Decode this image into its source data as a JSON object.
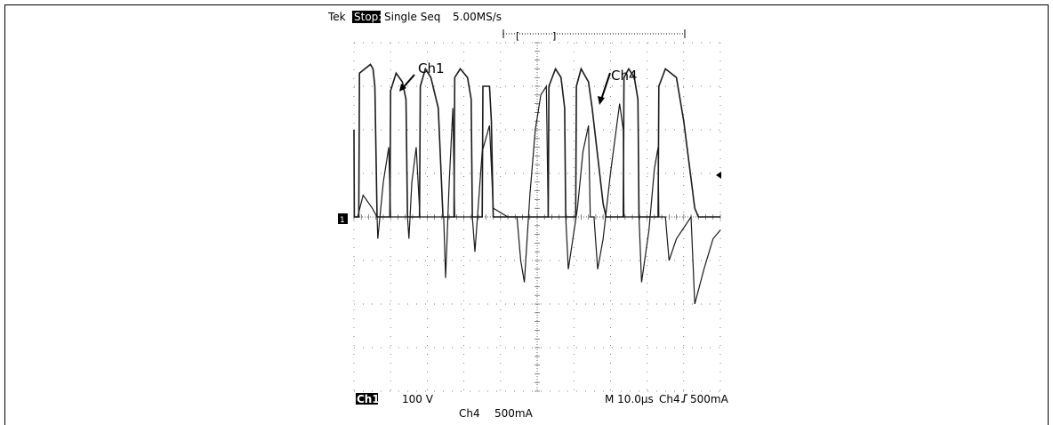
{
  "header": {
    "brand": "Tek",
    "run_state": "Stop:",
    "mode": "Single Seq",
    "sample_rate": "5.00MS/s"
  },
  "footer": {
    "ch1_label": "Ch1",
    "ch1_scale": "100 V",
    "timebase": "M 10.0µs",
    "trigger_source": "Ch4",
    "trigger_slope_icon": "rising-edge-icon",
    "trigger_level": "500mA",
    "ch4_label": "Ch4",
    "ch4_scale": "500mA"
  },
  "markers": {
    "ch1_ground": "1"
  },
  "annotations": [
    {
      "text": "Ch1",
      "series": "Ch1"
    },
    {
      "text": "Ch4",
      "series": "Ch4"
    }
  ],
  "colors": {
    "background": "#ffffff",
    "grid": "#555555",
    "trace": "#1a1a1a",
    "label_inverse_bg": "#000000"
  },
  "chart_data": {
    "type": "line",
    "title": "",
    "xlabel": "",
    "ylabel": "",
    "x_unit": "µs",
    "xlim": [
      0,
      100
    ],
    "ylim_div": [
      -4,
      4
    ],
    "grid": true,
    "divisions": {
      "x": 10,
      "y": 8
    },
    "series": [
      {
        "name": "Ch1",
        "unit": "V",
        "scale_per_div": 100,
        "points": [
          [
            0,
            2.0
          ],
          [
            0.1,
            0.0
          ],
          [
            1.3,
            0.0
          ],
          [
            1.5,
            3.3
          ],
          [
            4.5,
            3.5
          ],
          [
            5.2,
            3.4
          ],
          [
            5.7,
            3.0
          ],
          [
            6.3,
            0.0
          ],
          [
            9.8,
            0.0
          ],
          [
            10.0,
            2.9
          ],
          [
            11.5,
            3.3
          ],
          [
            13.2,
            3.1
          ],
          [
            14.2,
            2.7
          ],
          [
            14.6,
            0.0
          ],
          [
            17.9,
            0.0
          ],
          [
            18.1,
            3.0
          ],
          [
            19.5,
            3.4
          ],
          [
            21.0,
            3.2
          ],
          [
            23.0,
            2.5
          ],
          [
            24.3,
            0.0
          ],
          [
            27.3,
            0.0
          ],
          [
            27.5,
            3.2
          ],
          [
            29.0,
            3.4
          ],
          [
            31.0,
            3.2
          ],
          [
            32.0,
            2.7
          ],
          [
            32.3,
            0.0
          ],
          [
            35.0,
            0.0
          ],
          [
            35.2,
            3.0
          ],
          [
            37.0,
            3.0
          ],
          [
            37.5,
            2.2
          ],
          [
            38.0,
            0.0
          ],
          [
            53.0,
            0.0
          ],
          [
            53.2,
            3.0
          ],
          [
            55.0,
            3.4
          ],
          [
            56.5,
            3.2
          ],
          [
            57.5,
            2.5
          ],
          [
            57.8,
            0.0
          ],
          [
            60.5,
            0.0
          ],
          [
            60.7,
            3.0
          ],
          [
            62.0,
            3.4
          ],
          [
            64.0,
            3.1
          ],
          [
            65.0,
            2.5
          ],
          [
            68.0,
            0.3
          ],
          [
            68.8,
            0.0
          ],
          [
            73.5,
            0.0
          ],
          [
            73.7,
            3.2
          ],
          [
            75.0,
            3.4
          ],
          [
            76.5,
            3.2
          ],
          [
            77.5,
            2.7
          ],
          [
            77.8,
            0.0
          ],
          [
            83.0,
            0.0
          ],
          [
            83.2,
            3.0
          ],
          [
            85.0,
            3.4
          ],
          [
            88.0,
            3.2
          ],
          [
            90.0,
            2.2
          ],
          [
            93.0,
            0.2
          ],
          [
            94.0,
            0.0
          ],
          [
            100,
            0.0
          ]
        ]
      },
      {
        "name": "Ch4",
        "unit": "mA",
        "scale_per_div": 500,
        "points": [
          [
            0,
            0.0
          ],
          [
            1.0,
            0.0
          ],
          [
            2.5,
            0.5
          ],
          [
            5.0,
            0.2
          ],
          [
            6.3,
            0.0
          ],
          [
            6.5,
            -0.5
          ],
          [
            8.0,
            0.8
          ],
          [
            9.5,
            1.6
          ],
          [
            10.0,
            0.0
          ],
          [
            14.6,
            0.0
          ],
          [
            15.0,
            -0.5
          ],
          [
            15.8,
            0.8
          ],
          [
            17.0,
            1.6
          ],
          [
            18.0,
            0.0
          ],
          [
            24.5,
            0.0
          ],
          [
            25.0,
            -1.4
          ],
          [
            26.0,
            0.8
          ],
          [
            27.0,
            2.5
          ],
          [
            27.5,
            0.0
          ],
          [
            32.3,
            0.0
          ],
          [
            33.0,
            -0.8
          ],
          [
            35.0,
            1.5
          ],
          [
            37.0,
            2.1
          ],
          [
            38.0,
            0.2
          ],
          [
            42.0,
            0.0
          ],
          [
            44.5,
            0.0
          ],
          [
            45.5,
            -1.0
          ],
          [
            46.5,
            -1.5
          ],
          [
            48.0,
            0.5
          ],
          [
            49.5,
            2.0
          ],
          [
            51.0,
            2.8
          ],
          [
            52.5,
            3.0
          ],
          [
            53.0,
            0.0
          ],
          [
            57.8,
            0.0
          ],
          [
            58.5,
            -1.2
          ],
          [
            61.0,
            0.2
          ],
          [
            62.5,
            1.5
          ],
          [
            64.0,
            2.1
          ],
          [
            64.5,
            0.0
          ],
          [
            65.5,
            0.0
          ],
          [
            66.5,
            -1.2
          ],
          [
            68.0,
            -0.5
          ],
          [
            70.0,
            1.0
          ],
          [
            72.5,
            2.6
          ],
          [
            73.5,
            2.0
          ],
          [
            73.7,
            0.0
          ],
          [
            77.8,
            0.0
          ],
          [
            78.5,
            -1.5
          ],
          [
            80.5,
            -0.3
          ],
          [
            82.0,
            1.1
          ],
          [
            83.0,
            1.6
          ],
          [
            83.2,
            0.0
          ],
          [
            85.0,
            0.0
          ],
          [
            86.0,
            -1.0
          ],
          [
            88.0,
            -0.5
          ],
          [
            92.0,
            0.0
          ],
          [
            93.0,
            -2.0
          ],
          [
            95.5,
            -1.2
          ],
          [
            98.0,
            -0.5
          ],
          [
            100,
            -0.3
          ]
        ]
      }
    ]
  }
}
